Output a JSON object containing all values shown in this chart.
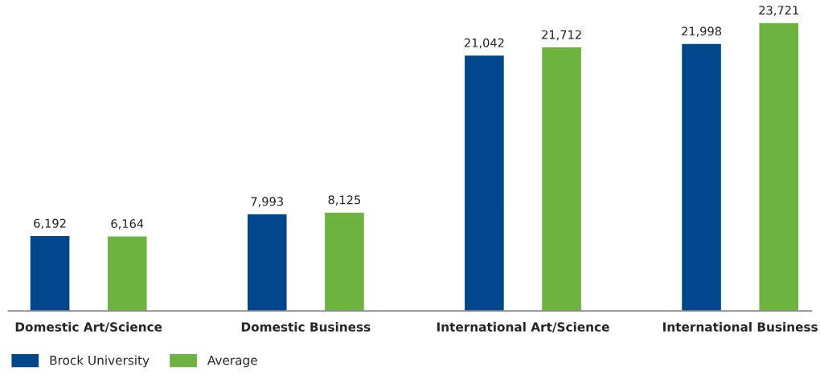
{
  "chart_data": {
    "type": "bar",
    "categories": [
      "Domestic Art/Science",
      "Domestic Business",
      "International Art/Science",
      "International Business"
    ],
    "series": [
      {
        "name": "Brock University",
        "color": "#00468b",
        "values": [
          6192,
          7993,
          21042,
          21998
        ],
        "value_labels": [
          "6,192",
          "7,993",
          "21,042",
          "21,998"
        ]
      },
      {
        "name": "Average",
        "color": "#6db33f",
        "values": [
          6164,
          8125,
          21712,
          23721
        ],
        "value_labels": [
          "6,164",
          "8,125",
          "21,712",
          "23,721"
        ]
      }
    ],
    "tick_labels": "x",
    "legend": "bottom left"
  }
}
